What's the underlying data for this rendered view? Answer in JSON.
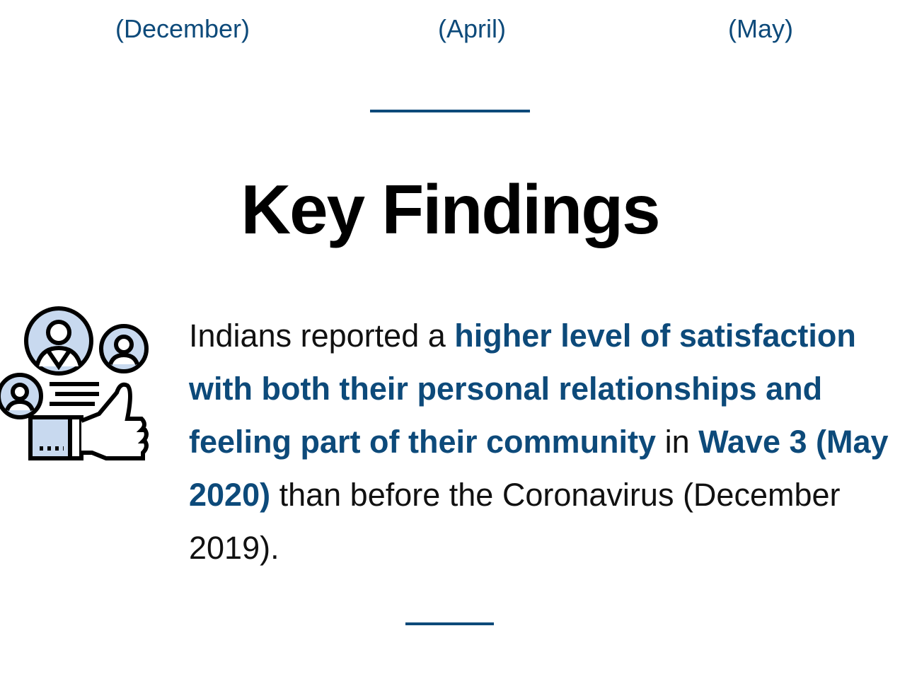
{
  "header": {
    "months": [
      "(December)",
      "(April)",
      "(May)"
    ]
  },
  "title": "Key Findings",
  "finding": {
    "segments": [
      {
        "text": "Indians reported a ",
        "emphasis": false
      },
      {
        "text": "higher level of satisfaction with both their personal relationships and feeling part of their community",
        "emphasis": true
      },
      {
        "text": " in ",
        "emphasis": false
      },
      {
        "text": "Wave 3 (May 2020)",
        "emphasis": true
      },
      {
        "text": " than before the Coronavirus (December 2019).",
        "emphasis": false
      }
    ]
  }
}
